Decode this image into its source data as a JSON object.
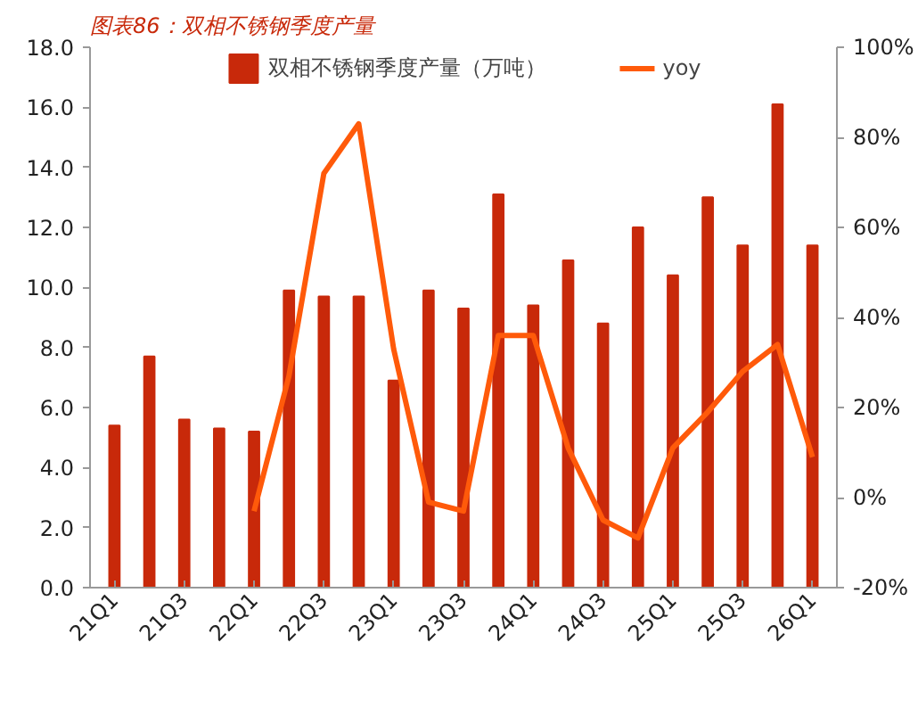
{
  "chart_data": {
    "type": "bar",
    "title": "图表86：双相不锈钢季度产量",
    "categories": [
      "21Q1",
      null,
      "21Q3",
      null,
      "22Q1",
      null,
      "22Q3",
      null,
      "23Q1",
      null,
      "23Q3",
      null,
      "24Q1",
      null,
      "24Q3",
      null,
      "25Q1",
      null,
      "25Q3",
      null,
      "26Q1"
    ],
    "series": [
      {
        "name": "双相不锈钢季度产量（万吨）",
        "color": "#c8290a",
        "values": [
          5.4,
          7.7,
          5.6,
          5.3,
          5.2,
          9.9,
          9.7,
          9.7,
          6.9,
          9.9,
          9.3,
          13.1,
          9.4,
          10.9,
          8.8,
          12.0,
          10.4,
          13.0,
          11.4,
          16.1,
          11.4
        ]
      },
      {
        "name": "yoy",
        "type": "line",
        "axis": "y2",
        "color": "#ff5a0a",
        "values": [
          null,
          null,
          null,
          null,
          -3,
          27,
          72,
          83,
          33,
          -1,
          -3,
          36,
          36,
          11,
          -5,
          -9,
          11,
          19,
          28,
          34,
          9
        ]
      }
    ],
    "ylim": [
      0,
      18
    ],
    "yticks": [
      {
        "value": 0,
        "label": "0.0"
      },
      {
        "value": 2,
        "label": "2.0"
      },
      {
        "value": 4,
        "label": "4.0"
      },
      {
        "value": 6,
        "label": "6.0"
      },
      {
        "value": 8,
        "label": "8.0"
      },
      {
        "value": 10,
        "label": "10.0"
      },
      {
        "value": 12,
        "label": "12.0"
      },
      {
        "value": 14,
        "label": "14.0"
      },
      {
        "value": 16,
        "label": "16.0"
      },
      {
        "value": 18,
        "label": "18.0"
      }
    ],
    "y2lim": [
      -20,
      100
    ],
    "y2ticks": [
      {
        "value": -20,
        "label": "-20%"
      },
      {
        "value": 0,
        "label": "0%"
      },
      {
        "value": 20,
        "label": "20%"
      },
      {
        "value": 40,
        "label": "40%"
      },
      {
        "value": 60,
        "label": "60%"
      },
      {
        "value": 80,
        "label": "80%"
      },
      {
        "value": 100,
        "label": "100%"
      }
    ],
    "legend": "top",
    "grid": false
  }
}
